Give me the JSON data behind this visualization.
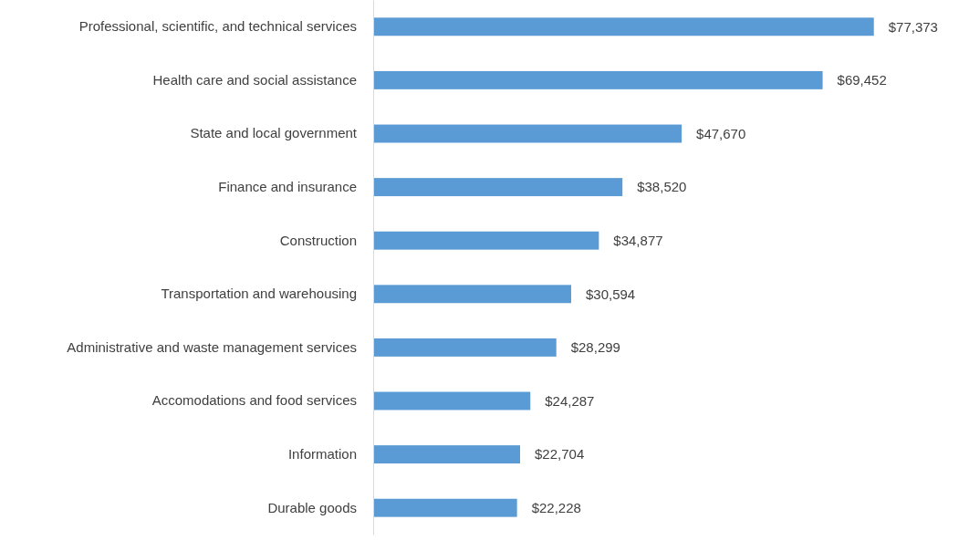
{
  "chart_data": {
    "type": "bar",
    "orientation": "horizontal",
    "categories": [
      "Professional, scientific, and technical services",
      "Health care and social assistance",
      "State and local government",
      "Finance and insurance",
      "Construction",
      "Transportation and warehousing",
      "Administrative and waste management services",
      "Accomodations and food services",
      "Information",
      "Durable goods"
    ],
    "values": [
      77373,
      69452,
      47670,
      38520,
      34877,
      30594,
      28299,
      24287,
      22704,
      22228
    ],
    "value_labels": [
      "$77,373",
      "$69,452",
      "$47,670",
      "$38,520",
      "$34,877",
      "$30,594",
      "$28,299",
      "$24,287",
      "$22,704",
      "$22,228"
    ],
    "color": "#5b9bd5"
  }
}
